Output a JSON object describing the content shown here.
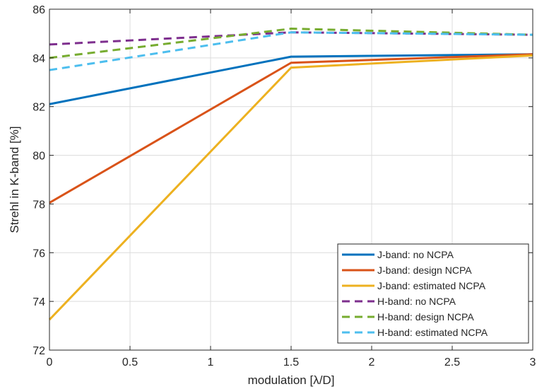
{
  "chart_data": {
    "type": "line",
    "xlabel": "modulation [λ/D]",
    "ylabel": "Strehl in K-band [%]",
    "xlim": [
      0,
      3
    ],
    "ylim": [
      72,
      86
    ],
    "xticks": [
      0,
      0.5,
      1,
      1.5,
      2,
      2.5,
      3
    ],
    "xtick_labels": [
      "0",
      "0.5",
      "1",
      "1.5",
      "2",
      "2.5",
      "3"
    ],
    "yticks": [
      72,
      74,
      76,
      78,
      80,
      82,
      84,
      86
    ],
    "ytick_labels": [
      "72",
      "74",
      "76",
      "78",
      "80",
      "82",
      "84",
      "86"
    ],
    "grid": true,
    "legend_position": "bottom-right",
    "x": [
      0,
      1.5,
      3
    ],
    "series": [
      {
        "name": "J-band: no NCPA",
        "values": [
          82.1,
          84.05,
          84.15
        ],
        "color": "#0072BD",
        "dash": "solid"
      },
      {
        "name": "J-band: design NCPA",
        "values": [
          78.05,
          83.8,
          84.15
        ],
        "color": "#D95319",
        "dash": "solid"
      },
      {
        "name": "J-band: estimated NCPA",
        "values": [
          73.25,
          83.6,
          84.1
        ],
        "color": "#EDB120",
        "dash": "solid"
      },
      {
        "name": "H-band: no NCPA",
        "values": [
          84.55,
          85.05,
          84.95
        ],
        "color": "#7E2F8E",
        "dash": "dashed"
      },
      {
        "name": "H-band: design NCPA",
        "values": [
          84.0,
          85.2,
          84.95
        ],
        "color": "#77AC30",
        "dash": "dashed"
      },
      {
        "name": "H-band: estimated NCPA",
        "values": [
          83.5,
          85.05,
          84.95
        ],
        "color": "#4DBEEE",
        "dash": "dashed"
      }
    ]
  }
}
